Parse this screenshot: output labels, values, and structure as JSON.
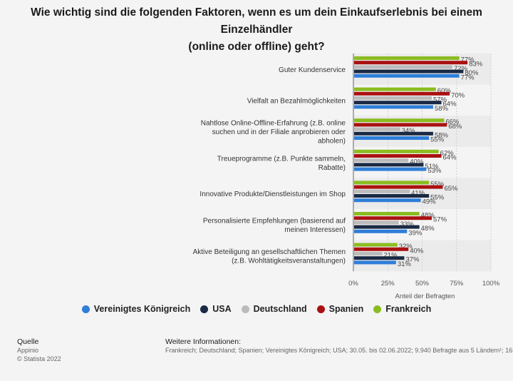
{
  "title": "Wie wichtig sind die folgenden Faktoren, wenn es um dein Einkaufserlebnis bei einem Einzelhändler (online oder offline) geht?",
  "chart_data": {
    "type": "bar",
    "orientation": "horizontal",
    "title": "Wie wichtig sind die folgenden Faktoren, wenn es um dein Einkaufserlebnis bei einem Einzelhändler (online oder offline) geht?",
    "xlabel": "Anteil der Befragten",
    "ylabel": "",
    "xlim": [
      0,
      100
    ],
    "x_ticks": [
      "0%",
      "25%",
      "50%",
      "75%",
      "100%"
    ],
    "grid": true,
    "legend_position": "bottom",
    "categories": [
      "Guter Kundenservice",
      "Vielfalt an Bezahlmöglichkeiten",
      "Nahtlose Online-Offline-Erfahrung (z.B. online suchen und in der Filiale anprobieren oder abholen)",
      "Treueprogramme (z.B. Punkte sammeln, Rabatte)",
      "Innovative Produkte/Dienstleistungen im Shop",
      "Personalisierte Empfehlungen (basierend auf meinen Interessen)",
      "Aktive Beteiligung an gesellschaftlichen Themen (z.B. Wohltätigkeitsveranstaltungen)"
    ],
    "category_lines": [
      [
        "Guter Kundenservice"
      ],
      [
        "Vielfalt an Bezahlmöglichkeiten"
      ],
      [
        "Nahtlose Online-Offline-Erfahrung (z.B. online",
        "suchen und in der Filiale anprobieren oder",
        "abholen)"
      ],
      [
        "Treueprogramme (z.B. Punkte sammeln,",
        "Rabatte)"
      ],
      [
        "Innovative Produkte/Dienstleistungen im Shop"
      ],
      [
        "Personalisierte Empfehlungen (basierend auf",
        "meinen Interessen)"
      ],
      [
        "Aktive Beteiligung an gesellschaftlichen Themen",
        "(z.B. Wohltätigkeitsveranstaltungen)"
      ]
    ],
    "series": [
      {
        "name": "Frankreich",
        "color": "#8bbc21",
        "values": [
          77,
          60,
          66,
          62,
          55,
          48,
          32
        ]
      },
      {
        "name": "Spanien",
        "color": "#aa1111",
        "values": [
          83,
          70,
          68,
          64,
          65,
          57,
          40
        ]
      },
      {
        "name": "Deutschland",
        "color": "#bbbbbb",
        "values": [
          72,
          57,
          34,
          40,
          41,
          33,
          21
        ]
      },
      {
        "name": "USA",
        "color": "#1a2a44",
        "values": [
          80,
          64,
          58,
          51,
          55,
          48,
          37
        ]
      },
      {
        "name": "Vereinigtes Königreich",
        "color": "#2f7ed8",
        "values": [
          77,
          58,
          55,
          53,
          49,
          39,
          31
        ]
      }
    ]
  },
  "legend": [
    {
      "label": "Vereinigtes Königreich",
      "color": "#2f7ed8"
    },
    {
      "label": "USA",
      "color": "#1a2a44"
    },
    {
      "label": "Deutschland",
      "color": "#bbbbbb"
    },
    {
      "label": "Spanien",
      "color": "#aa1111"
    },
    {
      "label": "Frankreich",
      "color": "#8bbc21"
    }
  ],
  "footer": {
    "source_heading": "Quelle",
    "source_name": "Appinio",
    "copyright": "© Statista 2022",
    "info_heading": "Weitere Informationen:",
    "info_text": "Frankreich; Deutschland; Spanien; Vereinigtes Königreich; USA; 30.05. bis 02.06.2022; 9.940 Befragte aus 5 Ländern¹; 16-"
  }
}
